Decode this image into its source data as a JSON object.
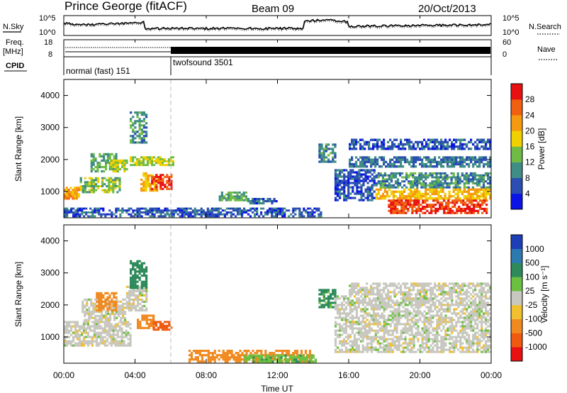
{
  "header": {
    "station": "Prince George (fitACF)",
    "beam": "Beam 09",
    "date": "20/Oct/2013"
  },
  "top_panels": {
    "nsky_label": "N.Sky",
    "nsky_ticks": [
      "10^5",
      "10^0"
    ],
    "nsearch_label": "N.Search",
    "nsearch_ticks": [
      "10^5",
      "10^0"
    ],
    "freq_label_1": "Freq.",
    "freq_label_2": "[MHz]",
    "freq_ticks": [
      "18",
      "8"
    ],
    "nave_label": "Nave",
    "nave_ticks": [
      "60",
      "0"
    ],
    "cpid_label": "CPID",
    "cpid_segments": [
      {
        "label": "normal (fast) 151",
        "start_hour": 0,
        "end_hour": 6
      },
      {
        "label": "twofsound 3501",
        "start_hour": 6,
        "end_hour": 24
      }
    ]
  },
  "x_axis": {
    "title": "Time UT",
    "ticks": [
      "00:00",
      "04:00",
      "08:00",
      "12:00",
      "16:00",
      "20:00",
      "00:00"
    ],
    "range_hours": [
      0,
      24
    ]
  },
  "power_panel": {
    "ylabel": "Slant Range [km]",
    "yticks": [
      "1000",
      "2000",
      "3000",
      "4000"
    ],
    "cbar_label": "Power [dB]",
    "cbar_ticks": [
      "4",
      "8",
      "12",
      "16",
      "20",
      "24",
      "28"
    ],
    "cbar_colors": [
      "#0a14e6",
      "#2a4eb2",
      "#3f8d84",
      "#70bb45",
      "#f0d000",
      "#f59a10",
      "#f06010",
      "#e81010"
    ]
  },
  "velocity_panel": {
    "ylabel": "Slant Range [km]",
    "yticks": [
      "1000",
      "2000",
      "3000",
      "4000"
    ],
    "cbar_label": "Velocity [m s⁻¹]",
    "cbar_ticks": [
      "1000",
      "500",
      "100",
      "25",
      "-25",
      "-100",
      "-500",
      "-1000"
    ],
    "cbar_colors": [
      "#1c3fb8",
      "#2c7ab0",
      "#2e8a5a",
      "#6cc040",
      "#c8c8c0",
      "#f0c030",
      "#f08a20",
      "#f05a10",
      "#e81010"
    ]
  },
  "chart_data": [
    {
      "type": "heatmap",
      "title": "Power",
      "xlabel": "Time UT",
      "ylabel": "Slant Range [km]",
      "xlim": [
        0,
        24
      ],
      "ylim": [
        180,
        4500
      ],
      "clim": [
        0,
        30
      ],
      "regions": [
        {
          "t0": 0.0,
          "t1": 0.9,
          "r0": 750,
          "r1": 1150,
          "value": 22
        },
        {
          "t0": 0.9,
          "t1": 3.2,
          "r0": 950,
          "r1": 1450,
          "value": 14
        },
        {
          "t0": 1.5,
          "t1": 3.0,
          "r0": 1600,
          "r1": 2200,
          "value": 12
        },
        {
          "t0": 2.6,
          "t1": 3.6,
          "r0": 1600,
          "r1": 2000,
          "value": 16
        },
        {
          "t0": 3.7,
          "t1": 4.7,
          "r0": 2500,
          "r1": 3500,
          "value": 10
        },
        {
          "t0": 4.3,
          "t1": 5.3,
          "r0": 1000,
          "r1": 1600,
          "value": 20
        },
        {
          "t0": 4.9,
          "t1": 6.1,
          "r0": 1050,
          "r1": 1550,
          "value": 28
        },
        {
          "t0": 3.7,
          "t1": 6.2,
          "r0": 1800,
          "r1": 2100,
          "value": 16
        },
        {
          "t0": 0.0,
          "t1": 14.5,
          "r0": 200,
          "r1": 500,
          "value": 6
        },
        {
          "t0": 8.7,
          "t1": 10.3,
          "r0": 700,
          "r1": 1000,
          "value": 12
        },
        {
          "t0": 10.3,
          "t1": 12.0,
          "r0": 600,
          "r1": 800,
          "value": 6
        },
        {
          "t0": 14.3,
          "t1": 15.3,
          "r0": 1900,
          "r1": 2500,
          "value": 10
        },
        {
          "t0": 15.2,
          "t1": 17.5,
          "r0": 700,
          "r1": 1700,
          "value": 6
        },
        {
          "t0": 17.5,
          "t1": 24.0,
          "r0": 1100,
          "r1": 1600,
          "value": 10
        },
        {
          "t0": 17.5,
          "t1": 24.0,
          "r0": 750,
          "r1": 1100,
          "value": 20
        },
        {
          "t0": 18.2,
          "t1": 23.8,
          "r0": 300,
          "r1": 750,
          "value": 28
        },
        {
          "t0": 16.0,
          "t1": 24.0,
          "r0": 1750,
          "r1": 2100,
          "value": 8
        },
        {
          "t0": 16.0,
          "t1": 24.0,
          "r0": 2300,
          "r1": 2650,
          "value": 6
        }
      ]
    },
    {
      "type": "heatmap",
      "title": "Velocity",
      "xlabel": "Time UT",
      "ylabel": "Slant Range [km]",
      "xlim": [
        0,
        24
      ],
      "ylim": [
        180,
        4500
      ],
      "clim": [
        -1000,
        1000
      ],
      "regions": [
        {
          "t0": 0.0,
          "t1": 3.8,
          "r0": 700,
          "r1": 1500,
          "value": 0
        },
        {
          "t0": 1.0,
          "t1": 3.5,
          "r0": 1500,
          "r1": 2200,
          "value": 0
        },
        {
          "t0": 3.5,
          "t1": 4.7,
          "r0": 1800,
          "r1": 2600,
          "value": 0
        },
        {
          "t0": 1.8,
          "t1": 3.0,
          "r0": 1800,
          "r1": 2400,
          "value": -300
        },
        {
          "t0": 4.1,
          "t1": 5.1,
          "r0": 1250,
          "r1": 1700,
          "value": -300
        },
        {
          "t0": 5.0,
          "t1": 6.1,
          "r0": 1200,
          "r1": 1500,
          "value": -800
        },
        {
          "t0": 3.7,
          "t1": 4.7,
          "r0": 2500,
          "r1": 3400,
          "value": 200
        },
        {
          "t0": 7.0,
          "t1": 14.0,
          "r0": 200,
          "r1": 600,
          "value": -150
        },
        {
          "t0": 10.0,
          "t1": 14.2,
          "r0": 200,
          "r1": 450,
          "value": 80
        },
        {
          "t0": 14.3,
          "t1": 15.3,
          "r0": 1900,
          "r1": 2500,
          "value": 120
        },
        {
          "t0": 15.2,
          "t1": 24.0,
          "r0": 500,
          "r1": 2300,
          "value": 0
        },
        {
          "t0": 16.0,
          "t1": 24.0,
          "r0": 2300,
          "r1": 2700,
          "value": 0
        }
      ]
    }
  ]
}
